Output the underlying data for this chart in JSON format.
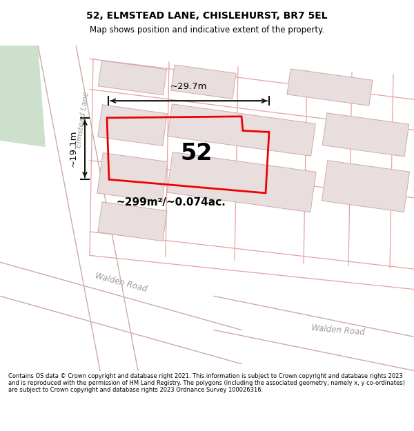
{
  "title": "52, ELMSTEAD LANE, CHISLEHURST, BR7 5EL",
  "subtitle": "Map shows position and indicative extent of the property.",
  "footer": "Contains OS data © Crown copyright and database right 2021. This information is subject to Crown copyright and database rights 2023 and is reproduced with the permission of HM Land Registry. The polygons (including the associated geometry, namely x, y co-ordinates) are subject to Crown copyright and database rights 2023 Ordnance Survey 100026316.",
  "area_label": "~299m²/~0.074ac.",
  "width_label": "~29.7m",
  "height_label": "~19.1m",
  "number_label": "52",
  "bg_color": "#ffffff",
  "map_bg": "#f7f3f3",
  "road_color": "#ffffff",
  "road_edge": "#ccaaaa",
  "plot_line_color": "#e8a0a0",
  "building_fill": "#e8dede",
  "building_edge": "#d0aaaa",
  "highlight_color": "#ee0000",
  "green_color": "#cde0cc",
  "text_color": "#000000",
  "road_text_color": "#999999",
  "dim_color": "#111111",
  "title_fontsize": 10,
  "subtitle_fontsize": 8.5,
  "footer_fontsize": 6.0
}
